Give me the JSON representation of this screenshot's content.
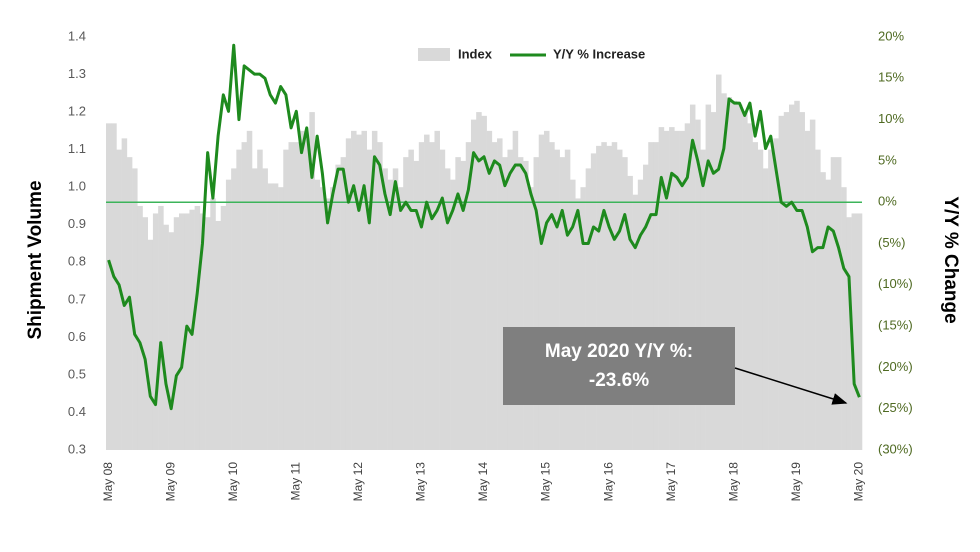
{
  "chart_data": {
    "type": "combo",
    "legend": "top",
    "categories": [
      "May 08",
      null,
      null,
      null,
      null,
      null,
      null,
      null,
      null,
      null,
      null,
      null,
      "May 09",
      null,
      null,
      null,
      null,
      null,
      null,
      null,
      null,
      null,
      null,
      null,
      "May 10",
      null,
      null,
      null,
      null,
      null,
      null,
      null,
      null,
      null,
      null,
      null,
      "May 11",
      null,
      null,
      null,
      null,
      null,
      null,
      null,
      null,
      null,
      null,
      null,
      "May 12",
      null,
      null,
      null,
      null,
      null,
      null,
      null,
      null,
      null,
      null,
      null,
      "May 13",
      null,
      null,
      null,
      null,
      null,
      null,
      null,
      null,
      null,
      null,
      null,
      "May 14",
      null,
      null,
      null,
      null,
      null,
      null,
      null,
      null,
      null,
      null,
      null,
      "May 15",
      null,
      null,
      null,
      null,
      null,
      null,
      null,
      null,
      null,
      null,
      null,
      "May 16",
      null,
      null,
      null,
      null,
      null,
      null,
      null,
      null,
      null,
      null,
      null,
      "May 17",
      null,
      null,
      null,
      null,
      null,
      null,
      null,
      null,
      null,
      null,
      null,
      "May 18",
      null,
      null,
      null,
      null,
      null,
      null,
      null,
      null,
      null,
      null,
      null,
      "May 19",
      null,
      null,
      null,
      null,
      null,
      null,
      null,
      null,
      null,
      null,
      null,
      "May 20"
    ],
    "series": [
      {
        "name": "Index",
        "type": "bar",
        "axis": "y",
        "color": "#d9d9d9",
        "values": [
          1.17,
          1.17,
          1.1,
          1.13,
          1.08,
          1.05,
          0.95,
          0.92,
          0.86,
          0.93,
          0.95,
          0.9,
          0.88,
          0.92,
          0.93,
          0.93,
          0.94,
          0.95,
          0.93,
          0.92,
          0.97,
          0.91,
          0.95,
          1.02,
          1.05,
          1.1,
          1.12,
          1.15,
          1.05,
          1.1,
          1.05,
          1.01,
          1.01,
          1.0,
          1.1,
          1.12,
          1.12,
          1.15,
          1.13,
          1.2,
          1.02,
          1.0,
          0.97,
          1.0,
          1.06,
          1.08,
          1.13,
          1.15,
          1.14,
          1.15,
          1.1,
          1.15,
          1.12,
          1.05,
          1.02,
          1.05,
          1.0,
          1.08,
          1.1,
          1.07,
          1.12,
          1.14,
          1.12,
          1.15,
          1.1,
          1.05,
          1.02,
          1.08,
          1.07,
          1.12,
          1.18,
          1.2,
          1.19,
          1.15,
          1.12,
          1.13,
          1.08,
          1.1,
          1.15,
          1.08,
          1.07,
          1.0,
          1.08,
          1.14,
          1.15,
          1.12,
          1.1,
          1.08,
          1.1,
          1.02,
          0.97,
          1.0,
          1.05,
          1.09,
          1.11,
          1.12,
          1.11,
          1.12,
          1.1,
          1.08,
          1.03,
          0.98,
          1.02,
          1.06,
          1.12,
          1.12,
          1.16,
          1.15,
          1.16,
          1.15,
          1.15,
          1.17,
          1.22,
          1.18,
          1.1,
          1.22,
          1.2,
          1.3,
          1.25,
          1.24,
          1.23,
          1.22,
          1.2,
          1.17,
          1.12,
          1.1,
          1.05,
          1.1,
          1.13,
          1.19,
          1.2,
          1.22,
          1.23,
          1.2,
          1.15,
          1.18,
          1.1,
          1.04,
          1.02,
          1.08,
          1.08,
          1.0,
          0.92,
          0.93,
          0.93
        ]
      },
      {
        "name": "Y/Y % Increase",
        "type": "line",
        "axis": "y2",
        "color": "#1e8a1e",
        "values": [
          -7,
          -9,
          -10,
          -12.5,
          -11.5,
          -16,
          -17,
          -19,
          -23.5,
          -24.5,
          -17,
          -22,
          -25,
          -21,
          -20,
          -15,
          -16,
          -11,
          -5,
          6,
          0.5,
          8,
          13,
          11,
          19,
          10,
          16.5,
          16,
          15.5,
          15.5,
          15,
          13,
          12,
          14,
          13,
          9,
          11,
          6,
          9,
          3,
          8,
          3.5,
          -2.5,
          1,
          4,
          4,
          0,
          2,
          -1,
          2,
          -2.5,
          5.5,
          4.5,
          1,
          -1.5,
          2.5,
          -1,
          0,
          -1,
          -1,
          -3,
          0,
          -2,
          -1,
          0.5,
          -2.5,
          -1,
          1,
          -1,
          1.5,
          6,
          5,
          5.5,
          3.5,
          5,
          4.5,
          2,
          3.5,
          4.5,
          4.5,
          3.5,
          1,
          -1,
          -5,
          -2.5,
          -1.5,
          -3,
          -1,
          -4,
          -3,
          -1,
          -5,
          -5,
          -3,
          -3.5,
          -1,
          -3,
          -4.5,
          -3.5,
          -1.5,
          -4.5,
          -5.5,
          -4,
          -3,
          -1.5,
          -1.5,
          3,
          0.5,
          3.5,
          3,
          2,
          3,
          7.5,
          5,
          2,
          5,
          3.5,
          4,
          6.5,
          12.5,
          12,
          12,
          10.5,
          12,
          8,
          11,
          6.5,
          8,
          4,
          0,
          -0.5,
          0,
          -1,
          -1,
          -3,
          -6,
          -5.5,
          -5.5,
          -3,
          -3.5,
          -5.5,
          -8,
          -9,
          -22,
          -23.6
        ]
      }
    ],
    "y_label": "Shipment Volume",
    "y2_label": "Y/Y % Change",
    "ylim": [
      0.3,
      1.4
    ],
    "yticks": [
      0.3,
      0.4,
      0.5,
      0.6,
      0.7,
      0.8,
      0.9,
      {
        "value": 1,
        "label": "1.0"
      },
      1.1,
      1.2,
      1.3,
      1.4
    ],
    "y2lim": [
      -30,
      20
    ],
    "y2ticks": [
      {
        "value": -30,
        "label": "(30%)"
      },
      {
        "value": -25,
        "label": "(25%)"
      },
      {
        "value": -20,
        "label": "(20%)"
      },
      {
        "value": -15,
        "label": "(15%)"
      },
      {
        "value": -10,
        "label": "(10%)"
      },
      {
        "value": -5,
        "label": "(5%)"
      },
      {
        "value": 0,
        "label": "0%"
      },
      {
        "value": 5,
        "label": "5%"
      },
      {
        "value": 10,
        "label": "10%"
      },
      {
        "value": 15,
        "label": "15%"
      },
      {
        "value": 20,
        "label": "20%"
      }
    ],
    "y2_reference": {
      "value": 0,
      "color": "#3cb45a"
    },
    "annotation": {
      "lines": [
        "May 2020 Y/Y %:",
        "-23.6%"
      ]
    }
  }
}
